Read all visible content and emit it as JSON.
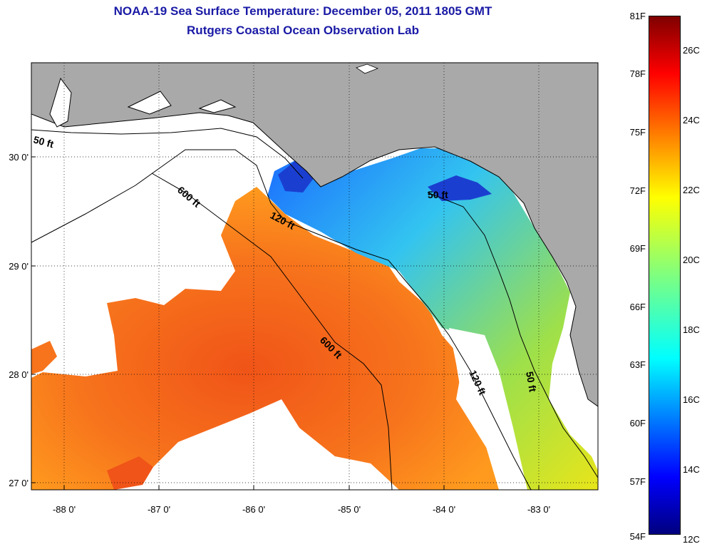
{
  "title": {
    "line1": "NOAA-19 Sea Surface Temperature:  December 05, 2011 1805 GMT",
    "line2": "Rutgers Coastal Ocean Observation Lab"
  },
  "colors": {
    "land": "#a9a9a9",
    "cloud": "#ffffff",
    "title": "#1a1aa6",
    "contour": "#000000"
  },
  "axes": {
    "lat_labels": [
      "30 0'",
      "29 0'",
      "28 0'",
      "27 0'"
    ],
    "lon_labels": [
      "-88 0'",
      "-87 0'",
      "-86 0'",
      "-85 0'",
      "-84 0'",
      "-83 0'"
    ]
  },
  "contours": [
    "50 ft",
    "600 ft",
    "120 ft",
    "600 ft",
    "50 ft",
    "120 ft",
    "50 ft"
  ],
  "colorbar": {
    "f_labels": [
      "81F",
      "78F",
      "75F",
      "72F",
      "69F",
      "66F",
      "63F",
      "60F",
      "57F",
      "54F"
    ],
    "c_labels": [
      "26C",
      "24C",
      "22C",
      "20C",
      "18C",
      "16C",
      "14C",
      "12C"
    ],
    "colormap": "jet"
  }
}
